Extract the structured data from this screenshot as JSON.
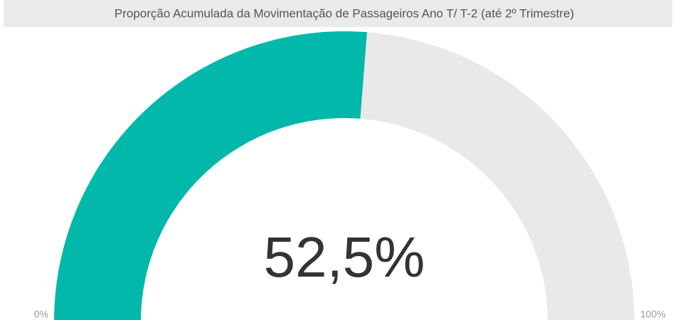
{
  "chart_data": {
    "type": "gauge",
    "title": "Proporção Acumulada da Movimentação de Passageiros Ano T/ T-2 (até 2º Trimestre)",
    "values": [
      52.5
    ],
    "value_labels": [
      "52,5%"
    ],
    "color": "#01b8aa",
    "track_color": "#e9e9e9",
    "ylim": [
      0,
      100
    ],
    "yticks": [
      {
        "value": 0,
        "label": "0%"
      },
      {
        "value": 100,
        "label": "100%"
      }
    ]
  }
}
